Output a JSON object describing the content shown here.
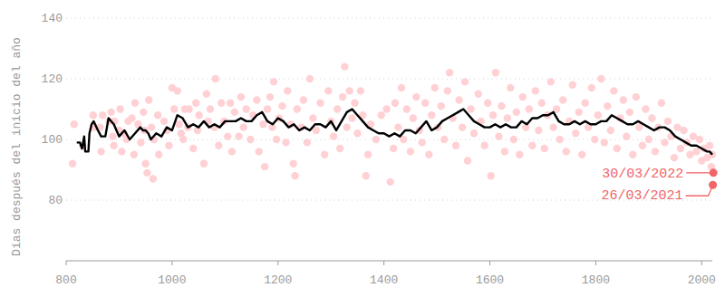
{
  "chart_data": {
    "type": "scatter",
    "y_label": "Días después del inicio del año",
    "xlim": [
      800,
      2020
    ],
    "xticks": [
      800,
      1000,
      1200,
      1400,
      1600,
      1800,
      2000
    ],
    "ylim": [
      60,
      140
    ],
    "yticks": [
      80,
      100,
      120,
      140
    ],
    "grid": true,
    "series": [
      {
        "type": "scatter",
        "color": "#ffd0d4",
        "marker": "circle",
        "x": [
          812,
          815,
          831,
          851,
          853,
          864,
          866,
          869,
          881,
          885,
          888,
          890,
          891,
          900,
          902,
          905,
          909,
          914,
          917,
          924,
          928,
          930,
          936,
          941,
          946,
          948,
          950,
          953,
          956,
          961,
          964,
          966,
          973,
          975,
          985,
          990,
          994,
          1000,
          1004,
          1010,
          1013,
          1017,
          1021,
          1024,
          1030,
          1032,
          1040,
          1045,
          1048,
          1051,
          1060,
          1065,
          1068,
          1072,
          1080,
          1082,
          1088,
          1093,
          1098,
          1105,
          1110,
          1113,
          1118,
          1126,
          1130,
          1135,
          1140,
          1148,
          1153,
          1160,
          1164,
          1172,
          1175,
          1180,
          1185,
          1189,
          1192,
          1197,
          1202,
          1208,
          1215,
          1218,
          1224,
          1229,
          1232,
          1236,
          1244,
          1248,
          1255,
          1260,
          1266,
          1272,
          1280,
          1288,
          1295,
          1300,
          1305,
          1312,
          1317,
          1322,
          1326,
          1330,
          1335,
          1340,
          1345,
          1350,
          1356,
          1360,
          1366,
          1370,
          1375,
          1385,
          1395,
          1405,
          1412,
          1418,
          1421,
          1427,
          1433,
          1437,
          1443,
          1450,
          1455,
          1461,
          1467,
          1472,
          1478,
          1485,
          1490,
          1496,
          1502,
          1508,
          1514,
          1520,
          1524,
          1530,
          1536,
          1542,
          1548,
          1553,
          1558,
          1564,
          1570,
          1578,
          1583,
          1590,
          1596,
          1602,
          1606,
          1611,
          1617,
          1622,
          1628,
          1633,
          1639,
          1645,
          1650,
          1656,
          1662,
          1668,
          1674,
          1680,
          1686,
          1692,
          1698,
          1703,
          1709,
          1715,
          1720,
          1726,
          1732,
          1738,
          1744,
          1750,
          1756,
          1762,
          1768,
          1774,
          1780,
          1786,
          1792,
          1798,
          1804,
          1810,
          1816,
          1822,
          1828,
          1834,
          1840,
          1846,
          1852,
          1858,
          1864,
          1870,
          1876,
          1882,
          1888,
          1894,
          1900,
          1906,
          1912,
          1918,
          1924,
          1930,
          1936,
          1942,
          1948,
          1954,
          1960,
          1966,
          1972,
          1978,
          1984,
          1990,
          1996,
          2000,
          2005,
          2010,
          2015,
          2018,
          2020
        ],
        "values": [
          92,
          105,
          98,
          108,
          104,
          104,
          96,
          108,
          106,
          109,
          101,
          98,
          106,
          103,
          110,
          96,
          102,
          100,
          106,
          107,
          95,
          112,
          105,
          99,
          109,
          103,
          92,
          89,
          113,
          104,
          87,
          100,
          108,
          95,
          106,
          103,
          98,
          117,
          110,
          116,
          105,
          102,
          100,
          110,
          104,
          110,
          97,
          112,
          103,
          108,
          92,
          115,
          106,
          110,
          104,
          120,
          98,
          112,
          106,
          101,
          112,
          96,
          109,
          101,
          114,
          104,
          110,
          100,
          108,
          113,
          96,
          105,
          91,
          110,
          114,
          104,
          119,
          100,
          107,
          111,
          99,
          116,
          105,
          92,
          88,
          110,
          104,
          113,
          99,
          120,
          107,
          103,
          112,
          95,
          116,
          106,
          101,
          110,
          97,
          114,
          124,
          104,
          116,
          107,
          112,
          102,
          116,
          108,
          88,
          95,
          105,
          100,
          108,
          110,
          86,
          97,
          112,
          104,
          117,
          100,
          110,
          96,
          107,
          114,
          103,
          99,
          112,
          95,
          108,
          117,
          104,
          111,
          100,
          116,
          122,
          107,
          98,
          113,
          104,
          119,
          93,
          110,
          102,
          115,
          106,
          98,
          112,
          88,
          108,
          122,
          101,
          111,
          96,
          107,
          117,
          100,
          109,
          95,
          114,
          104,
          110,
          98,
          116,
          103,
          112,
          97,
          108,
          119,
          104,
          110,
          100,
          113,
          96,
          106,
          118,
          102,
          109,
          95,
          112,
          104,
          117,
          100,
          108,
          120,
          99,
          111,
          103,
          116,
          97,
          107,
          113,
          101,
          109,
          95,
          114,
          104,
          98,
          110,
          100,
          107,
          96,
          104,
          112,
          99,
          106,
          101,
          94,
          104,
          97,
          103,
          99,
          95,
          101,
          96,
          100,
          93,
          97,
          94,
          98,
          91,
          95
        ]
      },
      {
        "type": "line",
        "color": "#000000",
        "line_style": "solid",
        "x": [
          820,
          826,
          830,
          834,
          836,
          842,
          844,
          848,
          852,
          860,
          866,
          874,
          880,
          890,
          900,
          910,
          920,
          930,
          940,
          945,
          950,
          955,
          960,
          970,
          980,
          990,
          1000,
          1010,
          1020,
          1030,
          1040,
          1050,
          1060,
          1070,
          1080,
          1090,
          1100,
          1110,
          1120,
          1130,
          1140,
          1150,
          1160,
          1170,
          1180,
          1190,
          1200,
          1210,
          1220,
          1230,
          1240,
          1250,
          1260,
          1270,
          1280,
          1290,
          1300,
          1310,
          1320,
          1330,
          1340,
          1350,
          1360,
          1370,
          1380,
          1390,
          1400,
          1410,
          1420,
          1430,
          1440,
          1450,
          1460,
          1470,
          1480,
          1490,
          1500,
          1510,
          1520,
          1530,
          1540,
          1550,
          1560,
          1570,
          1580,
          1590,
          1600,
          1610,
          1620,
          1630,
          1640,
          1650,
          1660,
          1670,
          1680,
          1690,
          1700,
          1710,
          1720,
          1730,
          1740,
          1750,
          1760,
          1770,
          1780,
          1790,
          1800,
          1810,
          1820,
          1830,
          1840,
          1850,
          1860,
          1870,
          1880,
          1890,
          1900,
          1910,
          1920,
          1930,
          1940,
          1950,
          1960,
          1970,
          1980,
          1990,
          2000,
          2010,
          2015,
          2020
        ],
        "values": [
          99,
          99,
          97,
          101,
          96,
          96,
          102,
          105,
          106,
          103,
          101,
          101,
          107,
          105,
          101,
          103,
          100,
          102,
          104,
          103,
          103,
          102,
          100,
          102,
          101,
          104,
          103,
          108,
          107,
          104,
          105,
          104,
          106,
          104,
          105,
          104,
          106,
          106,
          106,
          107,
          106,
          106,
          108,
          109,
          106,
          105,
          107,
          106,
          104,
          105,
          103,
          104,
          103,
          105,
          105,
          104,
          106,
          103,
          106,
          109,
          110,
          108,
          106,
          104,
          103,
          102,
          102,
          101,
          102,
          101,
          103,
          103,
          102,
          104,
          106,
          103,
          104,
          106,
          107,
          108,
          109,
          110,
          108,
          106,
          105,
          104,
          104,
          105,
          104,
          105,
          104,
          104,
          106,
          105,
          107,
          107,
          108,
          108,
          109,
          106,
          105,
          105,
          106,
          105,
          106,
          105,
          105,
          106,
          106,
          108,
          107,
          106,
          105,
          105,
          106,
          105,
          104,
          103,
          104,
          104,
          103,
          101,
          100,
          99,
          98,
          98,
          97,
          96,
          96,
          95
        ]
      },
      {
        "type": "scatter",
        "color": "#f0656a",
        "marker": "circle",
        "x": [
          2021,
          2022
        ],
        "values": [
          85,
          89
        ]
      }
    ],
    "annotations": [
      {
        "text": "30/03/2022",
        "x": 2022,
        "y": 89
      },
      {
        "text": "26/03/2021",
        "x": 2021,
        "y": 85
      }
    ]
  }
}
